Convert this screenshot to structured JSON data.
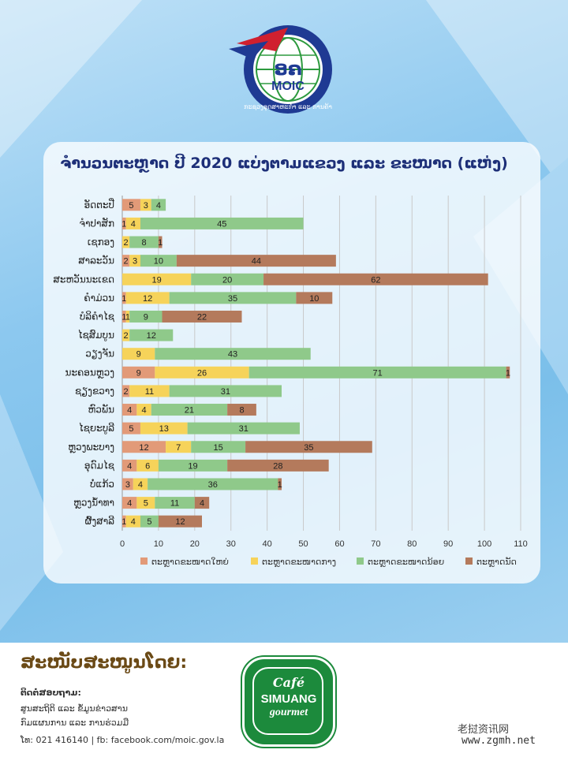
{
  "logo": {
    "short_name": "MOIC",
    "arc_text": "ກະຊວງອຸດສາຫະກຳ ແລະ ການຄ້າ",
    "numerals": "ອຄ"
  },
  "chart_data": {
    "type": "bar",
    "orientation": "horizontal",
    "stacked": true,
    "title": "ຈຳນວນຕະຫຼາດ ປີ 2020 ແບ່ງຕາມແຂວງ ແລະ ຂະໜາດ (ແຫ່ງ)",
    "categories": [
      "ອັດຕະປື",
      "ຈຳປາສັກ",
      "ເຊກອງ",
      "ສາລະວັນ",
      "ສະຫວັນນະເຂດ",
      "ຄຳມ່ວນ",
      "ບໍລິຄຳໄຊ",
      "ໄຊສົມບູນ",
      "ວຽງຈັນ",
      "ນະຄອນຫຼວງ",
      "ຊຽງຂວາງ",
      "ຫົວພັນ",
      "ໄຊຍະບູລີ",
      "ຫຼວງພະບາງ",
      "ອຸດົມໄຊ",
      "ບໍ່ແກ້ວ",
      "ຫຼວງນ້ຳທາ",
      "ຜົ້ງສາລີ"
    ],
    "series": [
      {
        "name": "ຕະຫຼາດຂະໜາດໃຫຍ່",
        "color": "#e29a78",
        "values": [
          5,
          1,
          0,
          2,
          0,
          1,
          1,
          0,
          0,
          9,
          2,
          4,
          5,
          12,
          4,
          3,
          4,
          1
        ]
      },
      {
        "name": "ຕະຫຼາດຂະໜາດກາງ",
        "color": "#f6d35a",
        "values": [
          3,
          4,
          2,
          3,
          19,
          12,
          1,
          2,
          9,
          26,
          11,
          4,
          13,
          7,
          6,
          4,
          5,
          4
        ]
      },
      {
        "name": "ຕະຫຼາດຂະໜາດນ້ອຍ",
        "color": "#8fc98a",
        "values": [
          4,
          45,
          8,
          10,
          20,
          35,
          9,
          12,
          43,
          71,
          31,
          21,
          31,
          15,
          19,
          36,
          11,
          5
        ]
      },
      {
        "name": "ຕະຫຼາດນັດ",
        "color": "#b47a5c",
        "values": [
          0,
          0,
          1,
          44,
          62,
          10,
          22,
          0,
          0,
          1,
          0,
          8,
          0,
          35,
          28,
          1,
          4,
          12
        ]
      }
    ],
    "xlim": [
      0,
      110
    ],
    "xticks": [
      0,
      10,
      20,
      30,
      40,
      50,
      60,
      70,
      80,
      90,
      100,
      110
    ],
    "grid": true,
    "legend_position": "bottom"
  },
  "footer": {
    "sponsor_title": "ສະໜັບສະໜູນໂດຍ:",
    "contact_label": "ຕິດຕໍ່ສອບຖາມ:",
    "contact_line1": "ສູນສະຖິຕິ ແລະ ຂໍ້ມູນຂ່າວສານ",
    "contact_line2": "ກົມແຜນການ ແລະ ການຮ່ວມມື",
    "contact_line3": "ໂທ: 021 416140  |  fb: facebook.com/moic.gov.la",
    "cafe_line1": "Café",
    "cafe_line2": "SIMUANG",
    "cafe_line3": "gourmet",
    "watermark": "老挝资讯网",
    "watermark_url": "www.zgmh.net"
  }
}
